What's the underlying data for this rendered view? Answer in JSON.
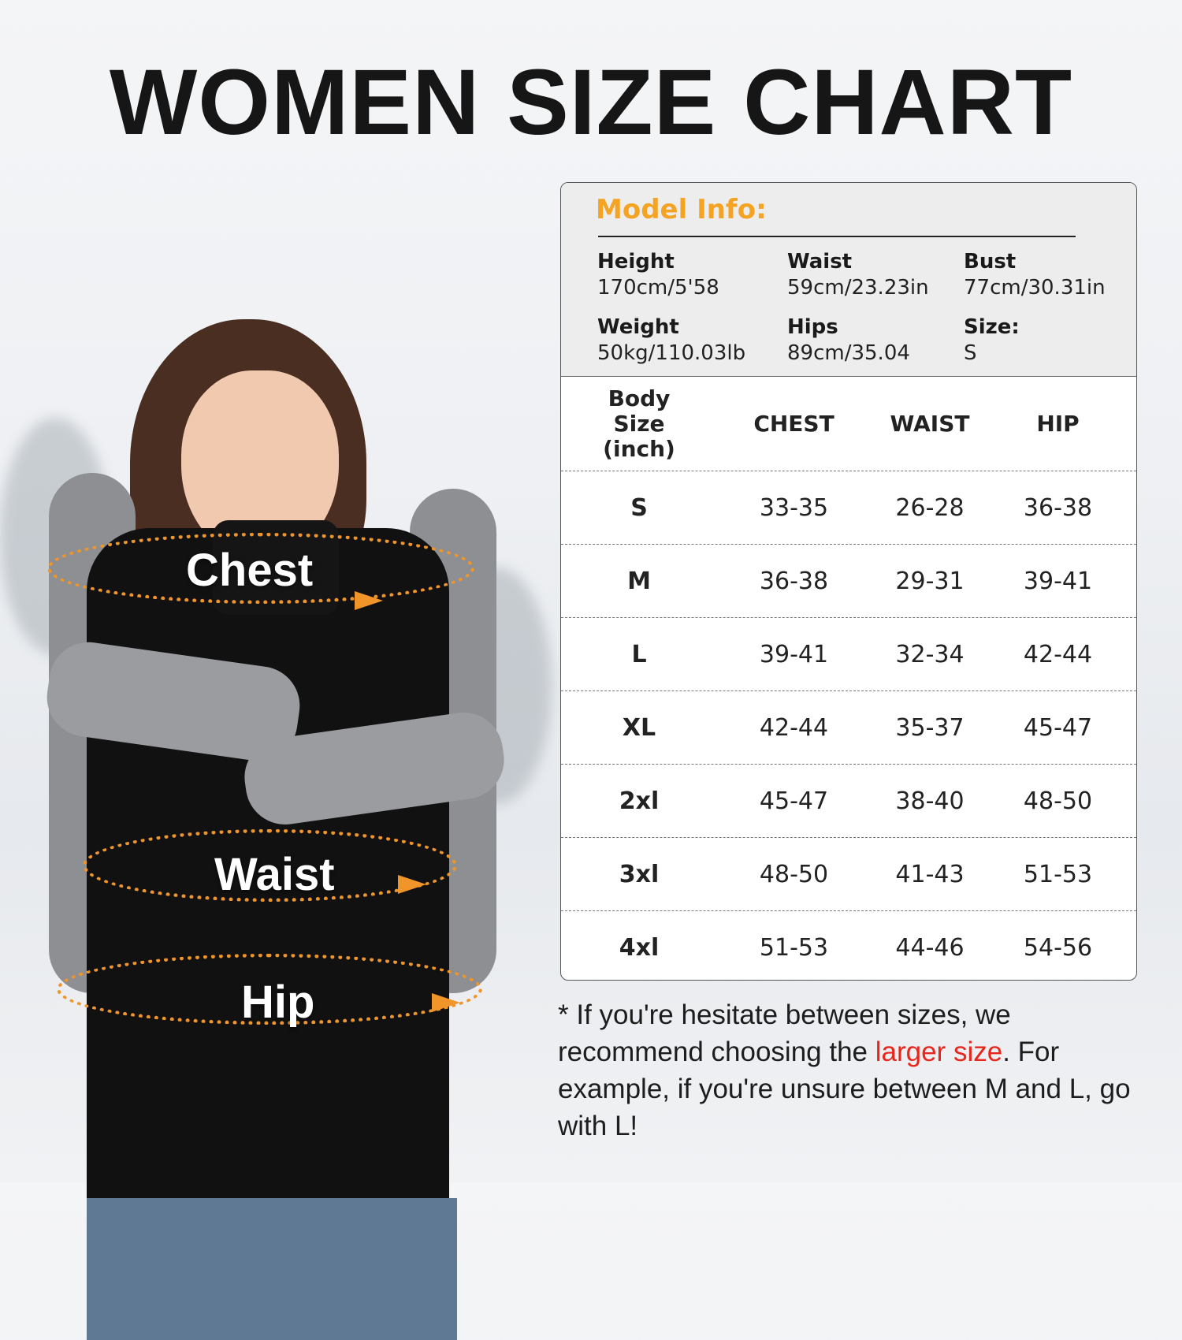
{
  "title": "WOMEN SIZE CHART",
  "figure_labels": {
    "chest": "Chest",
    "waist": "Waist",
    "hip": "Hip"
  },
  "colors": {
    "accent": "#f4a422",
    "arrow": "#f0952a",
    "highlight": "#e8261c"
  },
  "model_info": {
    "title": "Model Info:",
    "items": [
      {
        "label": "Height",
        "value": "170cm/5'58"
      },
      {
        "label": "Waist",
        "value": "59cm/23.23in"
      },
      {
        "label": "Bust",
        "value": "77cm/30.31in"
      },
      {
        "label": "Weight",
        "value": "50kg/110.03lb"
      },
      {
        "label": "Hips",
        "value": "89cm/35.04"
      },
      {
        "label": "Size:",
        "value": "S"
      }
    ]
  },
  "table": {
    "headers": [
      "Body Size (inch)",
      "CHEST",
      "WAIST",
      "HIP"
    ],
    "rows": [
      [
        "S",
        "33-35",
        "26-28",
        "36-38"
      ],
      [
        "M",
        "36-38",
        "29-31",
        "39-41"
      ],
      [
        "L",
        "39-41",
        "32-34",
        "42-44"
      ],
      [
        "XL",
        "42-44",
        "35-37",
        "45-47"
      ],
      [
        "2xl",
        "45-47",
        "38-40",
        "48-50"
      ],
      [
        "3xl",
        "48-50",
        "41-43",
        "51-53"
      ],
      [
        "4xl",
        "51-53",
        "44-46",
        "54-56"
      ]
    ]
  },
  "note": {
    "before": "* If you're hesitate between sizes, we recommend choosing the ",
    "highlight": "larger size",
    "after": ". For example, if you're unsure between M and L, go with L!"
  }
}
